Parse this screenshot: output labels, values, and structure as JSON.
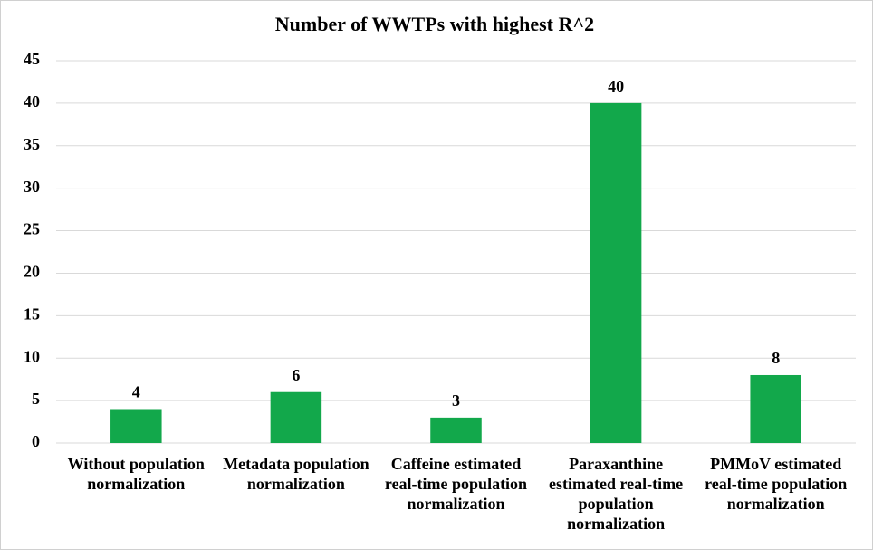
{
  "chart_data": {
    "type": "bar",
    "title": "Number of WWTPs with highest R^2",
    "categories": [
      "Without population normalization",
      "Metadata population normalization",
      "Caffeine estimated real-time population normalization",
      "Paraxanthine estimated real-time population normalization",
      "PMMoV estimated real-time population normalization"
    ],
    "values": [
      4,
      6,
      3,
      40,
      8
    ],
    "color": "#12a84b",
    "ylim": [
      0,
      45
    ],
    "yticks": [
      0,
      5,
      10,
      15,
      20,
      25,
      30,
      35,
      40,
      45
    ],
    "grid": true
  }
}
